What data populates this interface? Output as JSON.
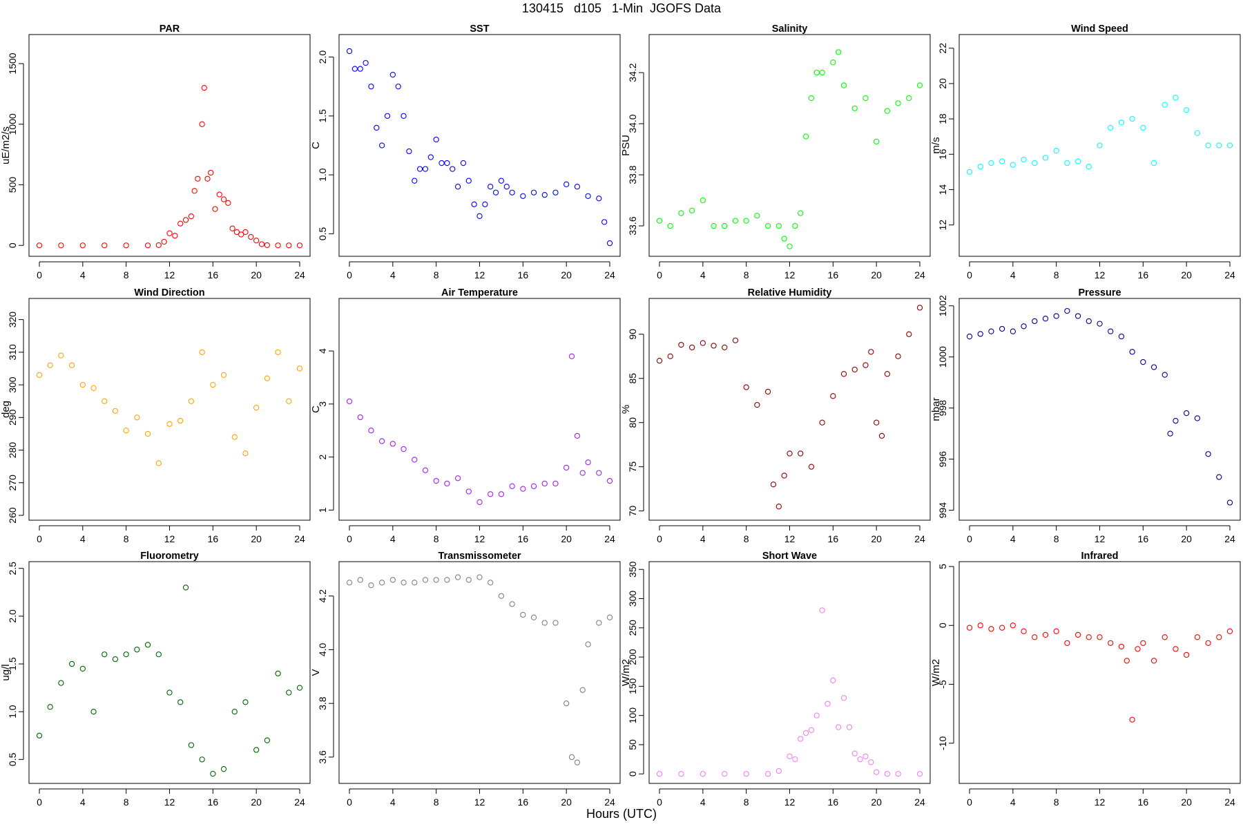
{
  "title": "130415   d105   1-Min  JGOFS Data",
  "x_axis_label": "Hours (UTC)",
  "chart_data": [
    {
      "type": "scatter",
      "title": "PAR",
      "ylabel": "uE/m2/s",
      "color": "#ff0000",
      "xlim": [
        0,
        24
      ],
      "ylim": [
        -50,
        1700
      ],
      "xticks": [
        0,
        4,
        8,
        12,
        16,
        20,
        24
      ],
      "yticks": [
        0,
        500,
        1000,
        1500
      ],
      "x": [
        0,
        2,
        4,
        6,
        8,
        10,
        11,
        11.5,
        12,
        12.5,
        13,
        13.5,
        14,
        14.3,
        14.6,
        15,
        15.2,
        15.5,
        15.8,
        16.2,
        16.6,
        17,
        17.4,
        17.8,
        18.2,
        18.6,
        19,
        19.5,
        20,
        20.5,
        21,
        22,
        23,
        24
      ],
      "y": [
        0,
        0,
        0,
        0,
        0,
        0,
        2,
        30,
        100,
        80,
        180,
        210,
        240,
        450,
        550,
        1000,
        1300,
        550,
        600,
        300,
        420,
        380,
        350,
        140,
        110,
        90,
        110,
        70,
        40,
        10,
        2,
        0,
        0,
        0
      ]
    },
    {
      "type": "scatter",
      "title": "SST",
      "ylabel": "C",
      "color": "#0000ff",
      "xlim": [
        0,
        24
      ],
      "ylim": [
        0.35,
        2.15
      ],
      "xticks": [
        0,
        4,
        8,
        12,
        16,
        20,
        24
      ],
      "yticks": [
        0.5,
        1.0,
        1.5,
        2.0
      ],
      "ytick_labels": [
        "0.5",
        "1.0",
        "1.5",
        "2.0"
      ],
      "x": [
        0,
        0.5,
        1,
        1.5,
        2,
        2.5,
        3,
        3.5,
        4,
        4.5,
        5,
        5.5,
        6,
        6.5,
        7,
        7.5,
        8,
        8.5,
        9,
        9.5,
        10,
        10.5,
        11,
        11.5,
        12,
        12.5,
        13,
        13.5,
        14,
        14.5,
        15,
        16,
        17,
        18,
        19,
        20,
        21,
        22,
        23,
        23.5,
        24
      ],
      "y": [
        2.05,
        1.9,
        1.9,
        1.95,
        1.75,
        1.4,
        1.25,
        1.5,
        1.85,
        1.75,
        1.5,
        1.2,
        0.95,
        1.05,
        1.05,
        1.15,
        1.3,
        1.1,
        1.1,
        1.05,
        0.9,
        1.1,
        0.95,
        0.75,
        0.65,
        0.75,
        0.9,
        0.85,
        0.95,
        0.9,
        0.85,
        0.82,
        0.85,
        0.83,
        0.85,
        0.92,
        0.9,
        0.82,
        0.8,
        0.6,
        0.42
      ]
    },
    {
      "type": "scatter",
      "title": "Salinity",
      "ylabel": "PSU",
      "color": "#00ff00",
      "xlim": [
        0,
        24
      ],
      "ylim": [
        33.5,
        34.33
      ],
      "xticks": [
        0,
        4,
        8,
        12,
        16,
        20,
        24
      ],
      "yticks": [
        33.6,
        33.8,
        34.0,
        34.2
      ],
      "ytick_labels": [
        "33.6",
        "33.8",
        "34.0",
        "34.2"
      ],
      "x": [
        0,
        1,
        2,
        3,
        4,
        5,
        6,
        7,
        8,
        9,
        10,
        11,
        11.5,
        12,
        12.5,
        13,
        13.5,
        14,
        14.5,
        15,
        16,
        16.5,
        17,
        18,
        19,
        20,
        21,
        22,
        23,
        24
      ],
      "y": [
        33.62,
        33.6,
        33.65,
        33.66,
        33.7,
        33.6,
        33.6,
        33.62,
        33.62,
        33.64,
        33.6,
        33.6,
        33.55,
        33.52,
        33.6,
        33.65,
        33.95,
        34.1,
        34.2,
        34.2,
        34.24,
        34.28,
        34.15,
        34.06,
        34.1,
        33.93,
        34.05,
        34.08,
        34.1,
        34.15
      ]
    },
    {
      "type": "scatter",
      "title": "Wind Speed",
      "ylabel": "m/s",
      "color": "#00ffff",
      "xlim": [
        0,
        24
      ],
      "ylim": [
        10.5,
        22.5
      ],
      "xticks": [
        0,
        4,
        8,
        12,
        16,
        20,
        24
      ],
      "yticks": [
        12,
        14,
        16,
        18,
        20,
        22
      ],
      "x": [
        0,
        1,
        2,
        3,
        4,
        5,
        6,
        7,
        8,
        9,
        10,
        11,
        12,
        13,
        14,
        15,
        16,
        17,
        18,
        19,
        20,
        21,
        22,
        23,
        24
      ],
      "y": [
        15,
        15.3,
        15.5,
        15.6,
        15.4,
        15.7,
        15.5,
        15.8,
        16.2,
        15.5,
        15.6,
        15.3,
        16.5,
        17.5,
        17.8,
        18,
        17.5,
        15.5,
        18.8,
        19.2,
        18.5,
        17.2,
        16.5,
        16.5,
        16.5
      ]
    },
    {
      "type": "scatter",
      "title": "Wind Direction",
      "ylabel": "deg",
      "color": "#ffa500",
      "xlim": [
        0,
        24
      ],
      "ylim": [
        260,
        325
      ],
      "xticks": [
        0,
        4,
        8,
        12,
        16,
        20,
        24
      ],
      "yticks": [
        260,
        270,
        280,
        290,
        300,
        310,
        320
      ],
      "x": [
        0,
        1,
        2,
        3,
        4,
        5,
        6,
        7,
        8,
        9,
        10,
        11,
        12,
        13,
        14,
        15,
        16,
        17,
        18,
        19,
        20,
        21,
        22,
        23,
        24
      ],
      "y": [
        303,
        306,
        309,
        306,
        300,
        299,
        295,
        292,
        286,
        290,
        285,
        276,
        288,
        289,
        295,
        310,
        300,
        303,
        284,
        279,
        293,
        302,
        310,
        295,
        305
      ]
    },
    {
      "type": "scatter",
      "title": "Air Temperature",
      "ylabel": "C",
      "color": "#a020f0",
      "xlim": [
        0,
        24
      ],
      "ylim": [
        0.9,
        4.9
      ],
      "xticks": [
        0,
        4,
        8,
        12,
        16,
        20,
        24
      ],
      "yticks": [
        1,
        2,
        3,
        4
      ],
      "x": [
        0,
        1,
        2,
        3,
        4,
        5,
        6,
        7,
        8,
        9,
        10,
        11,
        12,
        13,
        14,
        15,
        16,
        17,
        18,
        19,
        20,
        20.5,
        21,
        21.5,
        22,
        23,
        24
      ],
      "y": [
        3.05,
        2.75,
        2.5,
        2.3,
        2.25,
        2.15,
        1.95,
        1.75,
        1.55,
        1.5,
        1.6,
        1.35,
        1.15,
        1.3,
        1.3,
        1.45,
        1.4,
        1.45,
        1.5,
        1.5,
        1.8,
        3.9,
        2.4,
        1.7,
        1.9,
        1.7,
        1.55
      ]
    },
    {
      "type": "scatter",
      "title": "Relative Humidity",
      "ylabel": "%",
      "color": "#8b0000",
      "xlim": [
        0,
        24
      ],
      "ylim": [
        69.5,
        93.5
      ],
      "xticks": [
        0,
        4,
        8,
        12,
        16,
        20,
        24
      ],
      "yticks": [
        70,
        75,
        80,
        85,
        90
      ],
      "x": [
        0,
        1,
        2,
        3,
        4,
        5,
        6,
        7,
        8,
        9,
        10,
        10.5,
        11,
        11.5,
        12,
        13,
        14,
        15,
        16,
        17,
        18,
        19,
        19.5,
        20,
        20.5,
        21,
        22,
        23,
        24
      ],
      "y": [
        87,
        87.5,
        88.8,
        88.5,
        89,
        88.7,
        88.5,
        89.3,
        84,
        82,
        83.5,
        73,
        70.5,
        74,
        76.5,
        76.5,
        75,
        80,
        83,
        85.5,
        86,
        86.5,
        88,
        80,
        78.5,
        85.5,
        87.5,
        90,
        93
      ]
    },
    {
      "type": "scatter",
      "title": "Pressure",
      "ylabel": "mbar",
      "color": "#00008b",
      "xlim": [
        0,
        24
      ],
      "ylim": [
        993.8,
        1002.1
      ],
      "xticks": [
        0,
        4,
        8,
        12,
        16,
        20,
        24
      ],
      "yticks": [
        994,
        996,
        998,
        1000,
        1002
      ],
      "x": [
        0,
        1,
        2,
        3,
        4,
        5,
        6,
        7,
        8,
        9,
        10,
        11,
        12,
        13,
        14,
        15,
        16,
        17,
        18,
        18.5,
        19,
        20,
        21,
        22,
        23,
        24
      ],
      "y": [
        1000.8,
        1000.9,
        1001,
        1001.1,
        1001,
        1001.2,
        1001.4,
        1001.5,
        1001.6,
        1001.8,
        1001.6,
        1001.4,
        1001.3,
        1001,
        1000.8,
        1000.2,
        999.8,
        999.6,
        999.3,
        997,
        997.5,
        997.8,
        997.6,
        996.2,
        995.3,
        994.3
      ]
    },
    {
      "type": "scatter",
      "title": "Fluorometry",
      "ylabel": "ug/l",
      "color": "#006400",
      "xlim": [
        0,
        24
      ],
      "ylim": [
        0.3,
        2.52
      ],
      "xticks": [
        0,
        4,
        8,
        12,
        16,
        20,
        24
      ],
      "yticks": [
        0.5,
        1.0,
        1.5,
        2.0,
        2.5
      ],
      "ytick_labels": [
        "0.5",
        "1.0",
        "1.5",
        "2.0",
        "2.5"
      ],
      "x": [
        0,
        1,
        2,
        3,
        4,
        5,
        6,
        7,
        8,
        9,
        10,
        11,
        12,
        13,
        13.5,
        14,
        15,
        16,
        17,
        18,
        19,
        20,
        21,
        22,
        23,
        24
      ],
      "y": [
        0.75,
        1.05,
        1.3,
        1.5,
        1.45,
        1.0,
        1.6,
        1.55,
        1.6,
        1.65,
        1.7,
        1.6,
        1.2,
        1.1,
        2.3,
        0.65,
        0.5,
        0.35,
        0.4,
        1.0,
        1.1,
        0.6,
        0.7,
        1.4,
        1.2,
        1.25
      ]
    },
    {
      "type": "scatter",
      "title": "Transmissometer",
      "ylabel": "V",
      "color": "#808080",
      "xlim": [
        0,
        24
      ],
      "ylim": [
        3.52,
        4.31
      ],
      "xticks": [
        0,
        4,
        8,
        12,
        16,
        20,
        24
      ],
      "yticks": [
        3.6,
        3.8,
        4.0,
        4.2
      ],
      "ytick_labels": [
        "3.6",
        "3.8",
        "4.0",
        "4.2"
      ],
      "x": [
        0,
        1,
        2,
        3,
        4,
        5,
        6,
        7,
        8,
        9,
        10,
        11,
        12,
        13,
        14,
        15,
        16,
        17,
        18,
        19,
        20,
        20.5,
        21,
        21.5,
        22,
        23,
        24
      ],
      "y": [
        4.25,
        4.26,
        4.24,
        4.25,
        4.26,
        4.25,
        4.25,
        4.26,
        4.26,
        4.26,
        4.27,
        4.26,
        4.27,
        4.25,
        4.2,
        4.17,
        4.13,
        4.12,
        4.1,
        4.1,
        3.8,
        3.6,
        3.58,
        3.85,
        4.02,
        4.1,
        4.12
      ]
    },
    {
      "type": "scatter",
      "title": "Short Wave",
      "ylabel": "W/m2",
      "color": "#ee82ee",
      "xlim": [
        0,
        24
      ],
      "ylim": [
        -8,
        355
      ],
      "xticks": [
        0,
        4,
        8,
        12,
        16,
        20,
        24
      ],
      "yticks": [
        0,
        50,
        100,
        150,
        200,
        250,
        300,
        350
      ],
      "x": [
        0,
        2,
        4,
        6,
        8,
        10,
        11,
        12,
        12.5,
        13,
        13.5,
        14,
        14.5,
        15,
        15.5,
        16,
        16.5,
        17,
        17.5,
        18,
        18.5,
        19,
        19.5,
        20,
        21,
        22,
        24
      ],
      "y": [
        0,
        0,
        0,
        0,
        0,
        0,
        5,
        30,
        25,
        60,
        70,
        75,
        100,
        280,
        120,
        160,
        80,
        130,
        80,
        35,
        25,
        30,
        20,
        3,
        0,
        0,
        0
      ]
    },
    {
      "type": "scatter",
      "title": "Infrared",
      "ylabel": "W/m2",
      "color": "#ff0000",
      "xlim": [
        0,
        24
      ],
      "ylim": [
        -13,
        5
      ],
      "xticks": [
        0,
        4,
        8,
        12,
        16,
        20,
        24
      ],
      "yticks": [
        -10,
        -5,
        0,
        5
      ],
      "x": [
        0,
        1,
        2,
        3,
        4,
        5,
        6,
        7,
        8,
        9,
        10,
        11,
        12,
        13,
        14,
        14.5,
        15,
        15.5,
        16,
        17,
        18,
        19,
        20,
        21,
        22,
        23,
        24
      ],
      "y": [
        -0.2,
        0,
        -0.3,
        -0.2,
        0,
        -0.5,
        -1,
        -0.8,
        -0.5,
        -1.5,
        -0.8,
        -1,
        -1,
        -1.5,
        -1.8,
        -3,
        -8,
        -2,
        -1.5,
        -3,
        -1,
        -2,
        -2.5,
        -1,
        -1.5,
        -1,
        -0.5
      ]
    }
  ]
}
